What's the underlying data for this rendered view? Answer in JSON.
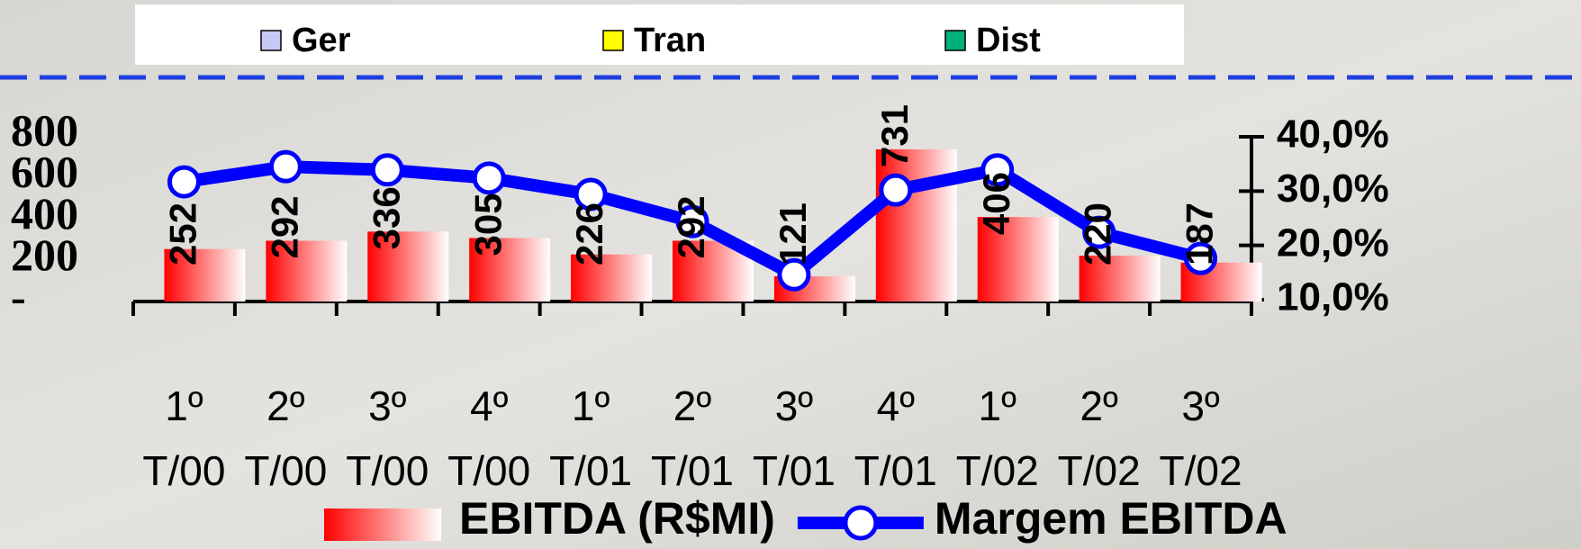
{
  "chart_data": {
    "type": "bar_line",
    "categories": [
      [
        "1º",
        "T/00"
      ],
      [
        "2º",
        "T/00"
      ],
      [
        "3º",
        "T/00"
      ],
      [
        "4º",
        "T/00"
      ],
      [
        "1º",
        "T/01"
      ],
      [
        "2º",
        "T/01"
      ],
      [
        "3º",
        "T/01"
      ],
      [
        "4º",
        "T/01"
      ],
      [
        "1º",
        "T/02"
      ],
      [
        "2º",
        "T/02"
      ],
      [
        "3º",
        "T/02"
      ]
    ],
    "series": [
      {
        "name": "EBITDA (R$MI)",
        "color": "#ff0000",
        "type": "bar",
        "values": [
          252,
          292,
          336,
          305,
          226,
          292,
          121,
          731,
          406,
          220,
          187
        ]
      },
      {
        "name": "Margem EBITDA",
        "color": "#0000ff",
        "type": "line",
        "axis": "y2",
        "values": [
          31.7,
          34.5,
          33.9,
          32.4,
          29.4,
          24.4,
          14.6,
          30.2,
          33.9,
          22.4,
          17.6
        ]
      }
    ],
    "ylim": [
      0,
      800
    ],
    "yticks": [
      {
        "value": 0,
        "label": "-"
      },
      200,
      400,
      600,
      800
    ],
    "y2lim": [
      10,
      40
    ],
    "y2ticks": [
      {
        "value": 10,
        "label": "10,0%"
      },
      {
        "value": 20,
        "label": "20,0%"
      },
      {
        "value": 30,
        "label": "30,0%"
      },
      {
        "value": 40,
        "label": "40,0%"
      }
    ],
    "top_legend": [
      {
        "name": "Ger",
        "color": "#c8c8f4"
      },
      {
        "name": "Tran",
        "color": "#ffff00"
      },
      {
        "name": "Dist",
        "color": "#00b07a"
      }
    ]
  }
}
